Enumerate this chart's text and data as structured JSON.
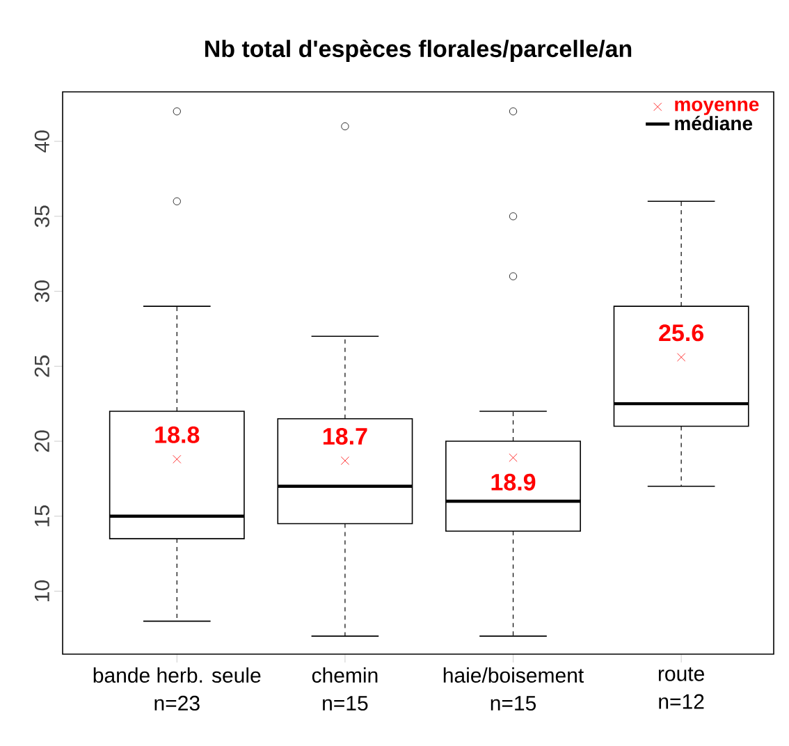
{
  "chart_data": {
    "type": "box",
    "title": "Nb total d'espèces florales/parcelle/an",
    "categories": [
      "bande herb. seule",
      "chemin",
      "haie/boisement",
      "route"
    ],
    "annotations": [
      "n=23",
      "n=15",
      "n=15",
      "n=12"
    ],
    "ylim": [
      5.8,
      43.3
    ],
    "yticks": [
      10,
      15,
      20,
      25,
      30,
      35,
      40
    ],
    "grid": false,
    "legend": "top right",
    "series": [
      {
        "name": "moyenne",
        "type": "scatter",
        "color": "#ff0000",
        "marker": "cross",
        "values": [
          18.8,
          18.7,
          18.9,
          25.6
        ],
        "value_labels": [
          "18.8",
          "18.7",
          "18.9",
          "25.6"
        ]
      },
      {
        "name": "médiane",
        "color": "#000000",
        "boxes": [
          {
            "low": 8,
            "q1": 13.5,
            "median": 15,
            "q3": 22,
            "high": 29,
            "outliers": [
              36,
              42
            ]
          },
          {
            "low": 7,
            "q1": 14.5,
            "median": 17,
            "q3": 21.5,
            "high": 27,
            "outliers": [
              41
            ]
          },
          {
            "low": 7,
            "q1": 14,
            "median": 16,
            "q3": 20,
            "high": 22,
            "outliers": [
              31,
              35,
              42
            ]
          },
          {
            "low": 17,
            "q1": 21,
            "median": 22.5,
            "q3": 29,
            "high": 36
          }
        ]
      }
    ]
  }
}
